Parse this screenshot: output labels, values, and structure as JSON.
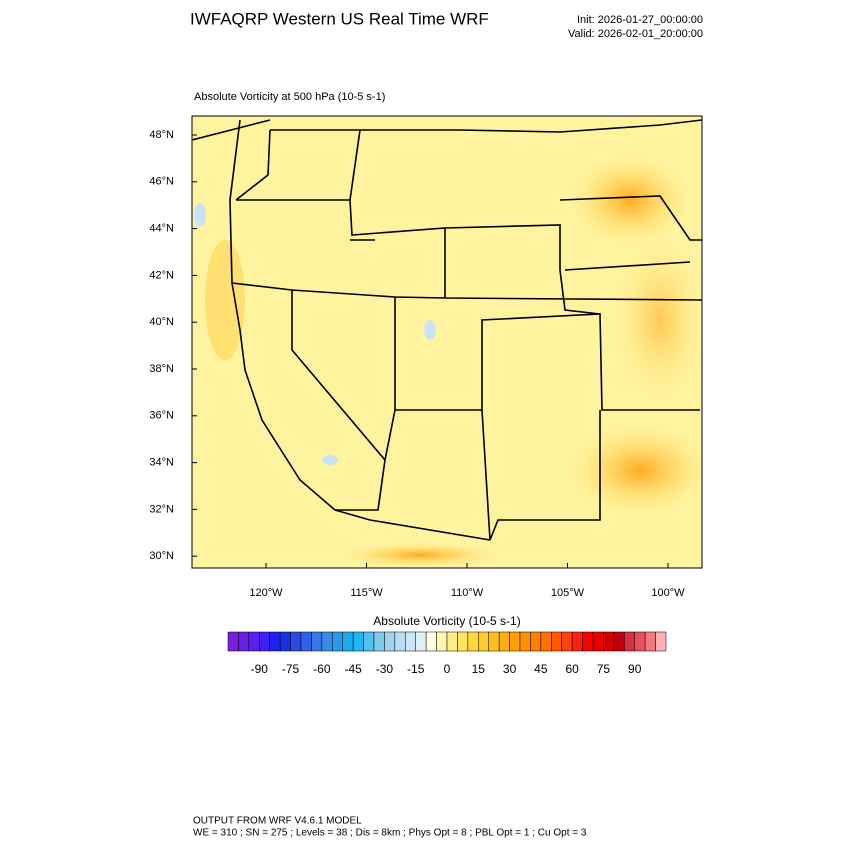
{
  "header": {
    "title": "IWFAQRP Western US Real Time WRF",
    "init": "Init: 2026-01-27_00:00:00",
    "valid": "Valid: 2026-02-01_20:00:00"
  },
  "map": {
    "subtitle": "Absolute Vorticity at 500 hPa   (10-5 s-1)",
    "lat_labels": [
      "48°N",
      "46°N",
      "44°N",
      "42°N",
      "40°N",
      "38°N",
      "36°N",
      "34°N",
      "32°N",
      "30°N"
    ],
    "lon_labels": [
      "120°W",
      "115°W",
      "110°W",
      "105°W",
      "100°W"
    ]
  },
  "colorbar": {
    "label": "Absolute Vorticity  (10-5 s-1)",
    "ticks": [
      -90,
      -75,
      -60,
      -45,
      -30,
      -15,
      0,
      15,
      30,
      45,
      60,
      75,
      90
    ],
    "colors": [
      "#7a1fe0",
      "#6a1fe8",
      "#5a20f0",
      "#4020f5",
      "#2020f0",
      "#1a30e8",
      "#2a4ae8",
      "#3060e8",
      "#3a78e8",
      "#3a8ae8",
      "#2a9ae8",
      "#1aaaee",
      "#20b8f0",
      "#50c0ee",
      "#80caea",
      "#a0d4ee",
      "#b8dcf0",
      "#cde6f4",
      "#dff0f8",
      "#fffde0",
      "#fff6b0",
      "#ffee88",
      "#ffe560",
      "#ffd840",
      "#ffcc30",
      "#ffbe20",
      "#ffb010",
      "#ffa000",
      "#ff9000",
      "#ff8000",
      "#ff7000",
      "#ff5a00",
      "#ff4010",
      "#ff2010",
      "#ff0000",
      "#e80000",
      "#d00000",
      "#c00010",
      "#d83040",
      "#e85060",
      "#f07a80",
      "#ffb0b0"
    ]
  },
  "footer": {
    "line1": "OUTPUT FROM WRF V4.6.1 MODEL",
    "line2": "WE = 310 ; SN = 275 ; Levels = 38 ; Dis = 8km ; Phys Opt = 8 ; PBL Opt = 1 ; Cu Opt = 3"
  }
}
